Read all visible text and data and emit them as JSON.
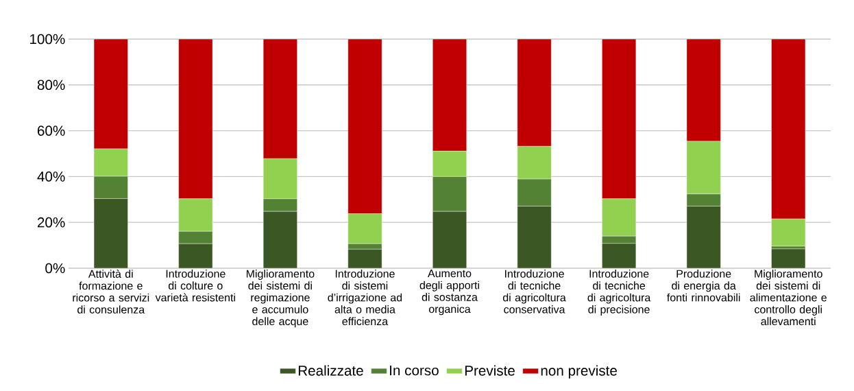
{
  "chart_data": {
    "type": "bar",
    "stacked": true,
    "categories": [
      "Attività di formazione e ricorso a servizi di consulenza",
      "Introduzione di colture o varietà resistenti",
      "Miglioramento dei sistemi di regimazione e accumulo delle acque",
      "Introduzione di sistemi d’irrigazione ad alta o media efficienza",
      "Aumento degli apporti di sostanza organica",
      "Introduzione di tecniche di agricoltura conservativa",
      "Introduzione di tecniche di agricoltura di precisione",
      "Produzione di energia da fonti rinnovabili",
      "Miglioramento dei sistemi di alimentazione e controllo degli allevamenti"
    ],
    "series": [
      {
        "name": "Realizzate",
        "color": "#3b5723",
        "values": [
          30.4,
          10.7,
          24.8,
          8.3,
          24.8,
          27.1,
          10.8,
          27.1,
          8.4
        ]
      },
      {
        "name": "In corso",
        "color": "#548235",
        "values": [
          9.7,
          5.4,
          5.5,
          2.4,
          15.2,
          11.8,
          3.2,
          5.3,
          1.2
        ]
      },
      {
        "name": "Previste",
        "color": "#92d050",
        "values": [
          12.0,
          14.2,
          17.5,
          13.1,
          11.1,
          14.3,
          16.3,
          23.0,
          11.9
        ]
      },
      {
        "name": "non previste",
        "color": "#c00000",
        "values": [
          47.9,
          69.7,
          52.2,
          76.2,
          48.9,
          46.8,
          69.7,
          44.6,
          78.5
        ]
      }
    ],
    "ylim": [
      0,
      100
    ],
    "yticks": [
      {
        "value": 0,
        "label": "0%"
      },
      {
        "value": 20,
        "label": "20%"
      },
      {
        "value": 40,
        "label": "40%"
      },
      {
        "value": 60,
        "label": "60%"
      },
      {
        "value": 80,
        "label": "80%"
      },
      {
        "value": 100,
        "label": "100%"
      }
    ],
    "grid": "y",
    "legend": "bottom"
  }
}
